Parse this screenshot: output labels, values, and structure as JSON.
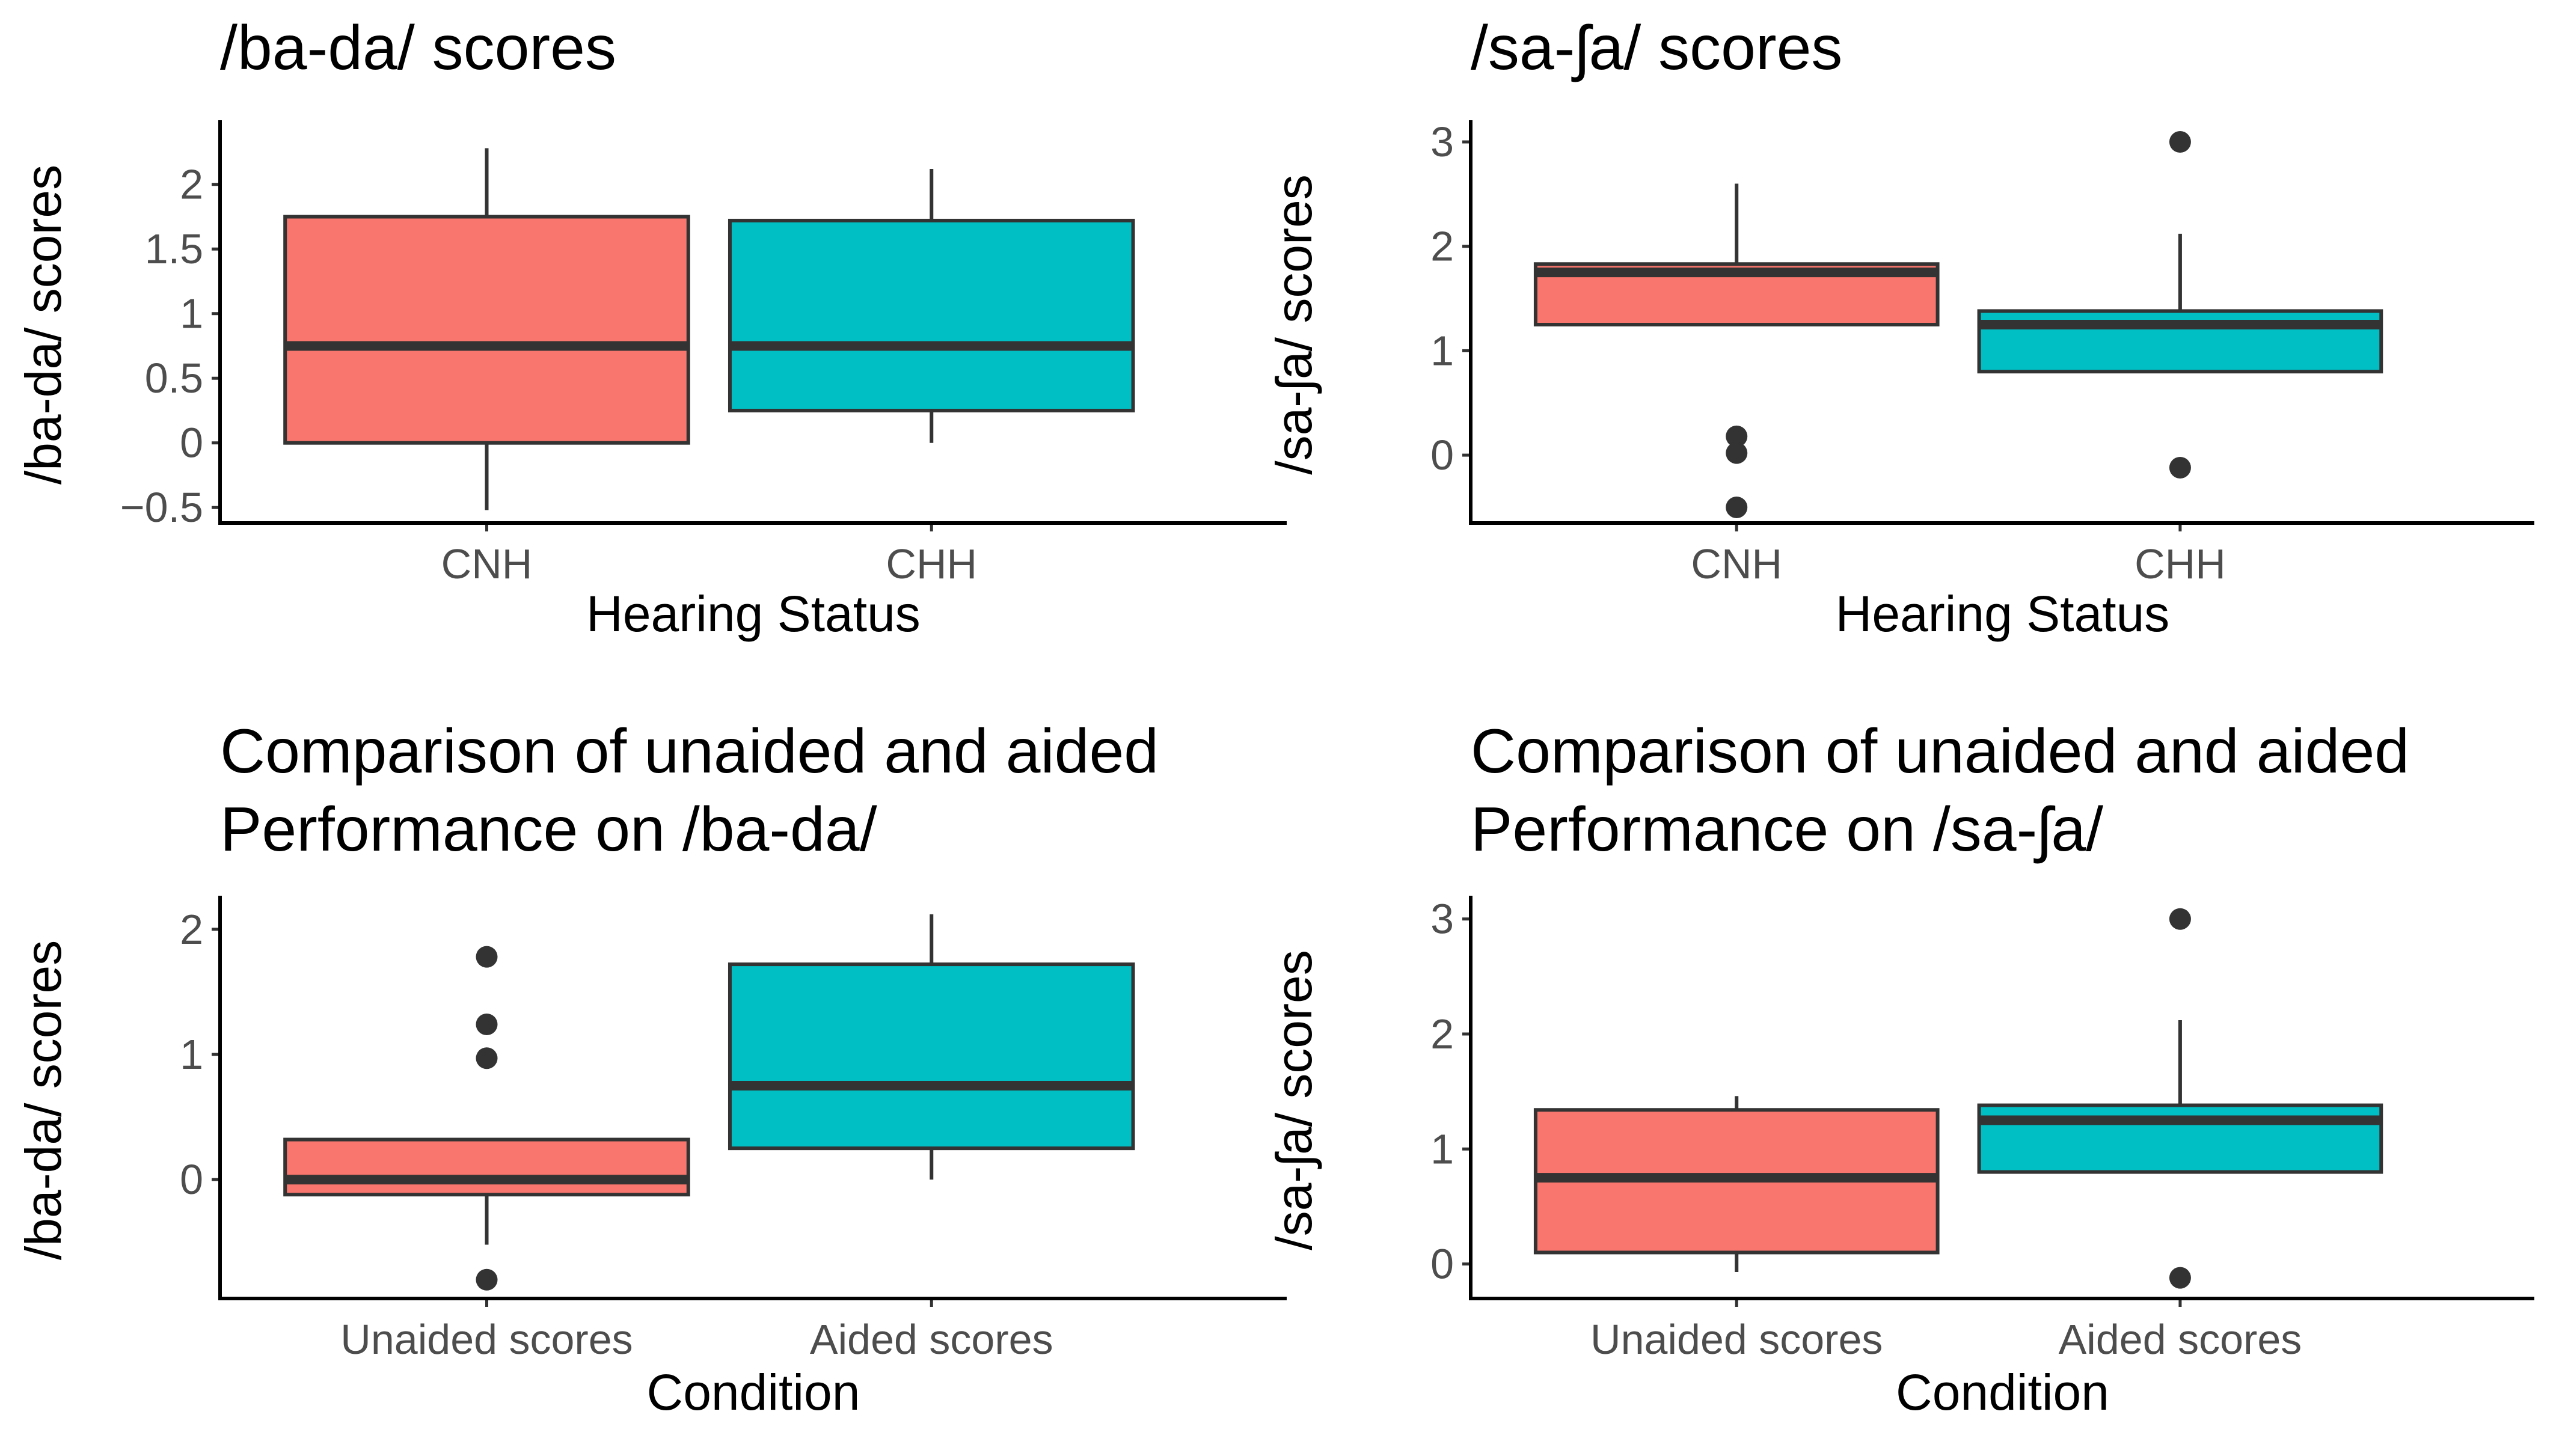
{
  "colors": {
    "fill_1": "#F8766D",
    "fill_2": "#00BFC4",
    "line": "#333333"
  },
  "chart_data": [
    {
      "type": "box",
      "title": "/ba-da/ scores",
      "xlabel": "Hearing Status",
      "ylabel": "/ba-da/ scores",
      "categories": [
        "CNH",
        "CHH"
      ],
      "ylim": [
        -0.62,
        2.45
      ],
      "yticks": [
        -0.5,
        0,
        0.5,
        1,
        1.5,
        2
      ],
      "ytick_labels": [
        "−0.5",
        "0",
        "0.5",
        "1",
        "1.5",
        "2"
      ],
      "boxes": [
        {
          "category": "CNH",
          "whisker_low": -0.52,
          "q1": 0.0,
          "median": 0.75,
          "q3": 1.75,
          "whisker_high": 2.28,
          "outliers": []
        },
        {
          "category": "CHH",
          "whisker_low": 0.0,
          "q1": 0.25,
          "median": 0.75,
          "q3": 1.72,
          "whisker_high": 2.12,
          "outliers": []
        }
      ]
    },
    {
      "type": "box",
      "title": "/sa-ʃa/ scores",
      "xlabel": "Hearing Status",
      "ylabel": "/sa-ʃa/ scores",
      "categories": [
        "CNH",
        "CHH"
      ],
      "ylim": [
        -0.65,
        3.15
      ],
      "yticks": [
        0,
        1,
        2,
        3
      ],
      "ytick_labels": [
        "0",
        "1",
        "2",
        "3"
      ],
      "boxes": [
        {
          "category": "CNH",
          "whisker_low": 1.25,
          "q1": 1.25,
          "median": 1.75,
          "q3": 1.83,
          "whisker_high": 2.6,
          "outliers": [
            0.18,
            0.02,
            -0.5
          ]
        },
        {
          "category": "CHH",
          "whisker_low": 0.8,
          "q1": 0.8,
          "median": 1.25,
          "q3": 1.38,
          "whisker_high": 2.12,
          "outliers": [
            3.0,
            -0.12
          ]
        }
      ]
    },
    {
      "type": "box",
      "title": "Comparison of unaided and aided\nPerformance on /ba-da/",
      "xlabel": "Condition",
      "ylabel": "/ba-da/ scores",
      "categories": [
        "Unaided scores",
        "Aided scores"
      ],
      "ylim": [
        -0.95,
        2.22
      ],
      "yticks": [
        0,
        1,
        2
      ],
      "ytick_labels": [
        "0",
        "1",
        "2"
      ],
      "boxes": [
        {
          "category": "Unaided scores",
          "whisker_low": -0.52,
          "q1": -0.12,
          "median": 0.0,
          "q3": 0.32,
          "whisker_high": 0.32,
          "outliers": [
            1.78,
            1.24,
            0.97,
            -0.8
          ]
        },
        {
          "category": "Aided scores",
          "whisker_low": 0.0,
          "q1": 0.25,
          "median": 0.75,
          "q3": 1.72,
          "whisker_high": 2.12,
          "outliers": []
        }
      ]
    },
    {
      "type": "box",
      "title": "Comparison of unaided and aided\nPerformance on /sa-ʃa/",
      "xlabel": "Condition",
      "ylabel": "/sa-ʃa/ scores",
      "categories": [
        "Unaided scores",
        "Aided scores"
      ],
      "ylim": [
        -0.3,
        3.15
      ],
      "yticks": [
        0,
        1,
        2,
        3
      ],
      "ytick_labels": [
        "0",
        "1",
        "2",
        "3"
      ],
      "boxes": [
        {
          "category": "Unaided scores",
          "whisker_low": -0.07,
          "q1": 0.1,
          "median": 0.75,
          "q3": 1.34,
          "whisker_high": 1.46,
          "outliers": []
        },
        {
          "category": "Aided scores",
          "whisker_low": 0.8,
          "q1": 0.8,
          "median": 1.25,
          "q3": 1.38,
          "whisker_high": 2.12,
          "outliers": [
            3.0,
            -0.12
          ]
        }
      ]
    }
  ]
}
